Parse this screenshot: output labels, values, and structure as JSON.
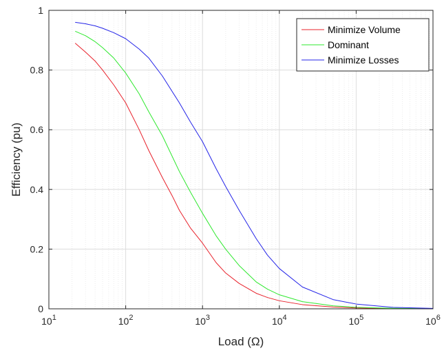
{
  "chart_data": {
    "type": "line",
    "title": "",
    "xlabel": "Load (Ω)",
    "ylabel": "Efficiency (pu)",
    "xscale": "log",
    "xlim": [
      10,
      1000000
    ],
    "ylim": [
      0,
      1
    ],
    "grid": true,
    "legend_position": "top-right",
    "x_ticks": [
      {
        "value": 10,
        "base": "10",
        "exp": "1"
      },
      {
        "value": 100,
        "base": "10",
        "exp": "2"
      },
      {
        "value": 1000,
        "base": "10",
        "exp": "3"
      },
      {
        "value": 10000,
        "base": "10",
        "exp": "4"
      },
      {
        "value": 100000,
        "base": "10",
        "exp": "5"
      },
      {
        "value": 1000000,
        "base": "10",
        "exp": "6"
      }
    ],
    "y_ticks": [
      {
        "value": 0,
        "label": "0"
      },
      {
        "value": 0.2,
        "label": "0.2"
      },
      {
        "value": 0.4,
        "label": "0.4"
      },
      {
        "value": 0.6,
        "label": "0.6"
      },
      {
        "value": 0.8,
        "label": "0.8"
      },
      {
        "value": 1,
        "label": "1"
      }
    ],
    "series": [
      {
        "name": "Minimize Volume",
        "color": "#e8202a",
        "x": [
          22,
          30,
          40,
          50,
          70,
          100,
          150,
          200,
          300,
          400,
          500,
          700,
          1000,
          1500,
          2000,
          3000,
          5000,
          7000,
          10000,
          20000,
          50000,
          100000,
          300000,
          1000000
        ],
        "y": [
          0.89,
          0.86,
          0.83,
          0.8,
          0.75,
          0.69,
          0.6,
          0.53,
          0.44,
          0.38,
          0.33,
          0.27,
          0.22,
          0.155,
          0.12,
          0.085,
          0.052,
          0.038,
          0.027,
          0.014,
          0.006,
          0.003,
          0.001,
          0.0003
        ]
      },
      {
        "name": "Dominant",
        "color": "#2ee82e",
        "x": [
          22,
          30,
          40,
          50,
          70,
          100,
          150,
          200,
          300,
          500,
          700,
          1000,
          1500,
          2000,
          3000,
          5000,
          7000,
          10000,
          20000,
          50000,
          100000,
          300000,
          1000000
        ],
        "y": [
          0.93,
          0.915,
          0.895,
          0.875,
          0.84,
          0.79,
          0.72,
          0.66,
          0.58,
          0.46,
          0.39,
          0.32,
          0.245,
          0.2,
          0.145,
          0.09,
          0.066,
          0.047,
          0.024,
          0.01,
          0.005,
          0.0017,
          0.0005
        ]
      },
      {
        "name": "Minimize Losses",
        "color": "#2323e8",
        "x": [
          22,
          30,
          40,
          50,
          70,
          100,
          150,
          200,
          300,
          500,
          700,
          1000,
          1500,
          2000,
          3000,
          5000,
          7000,
          10000,
          20000,
          50000,
          100000,
          300000,
          1000000
        ],
        "y": [
          0.96,
          0.955,
          0.948,
          0.94,
          0.925,
          0.905,
          0.87,
          0.84,
          0.78,
          0.69,
          0.625,
          0.56,
          0.47,
          0.41,
          0.33,
          0.235,
          0.18,
          0.135,
          0.073,
          0.031,
          0.016,
          0.005,
          0.0015
        ]
      }
    ]
  }
}
